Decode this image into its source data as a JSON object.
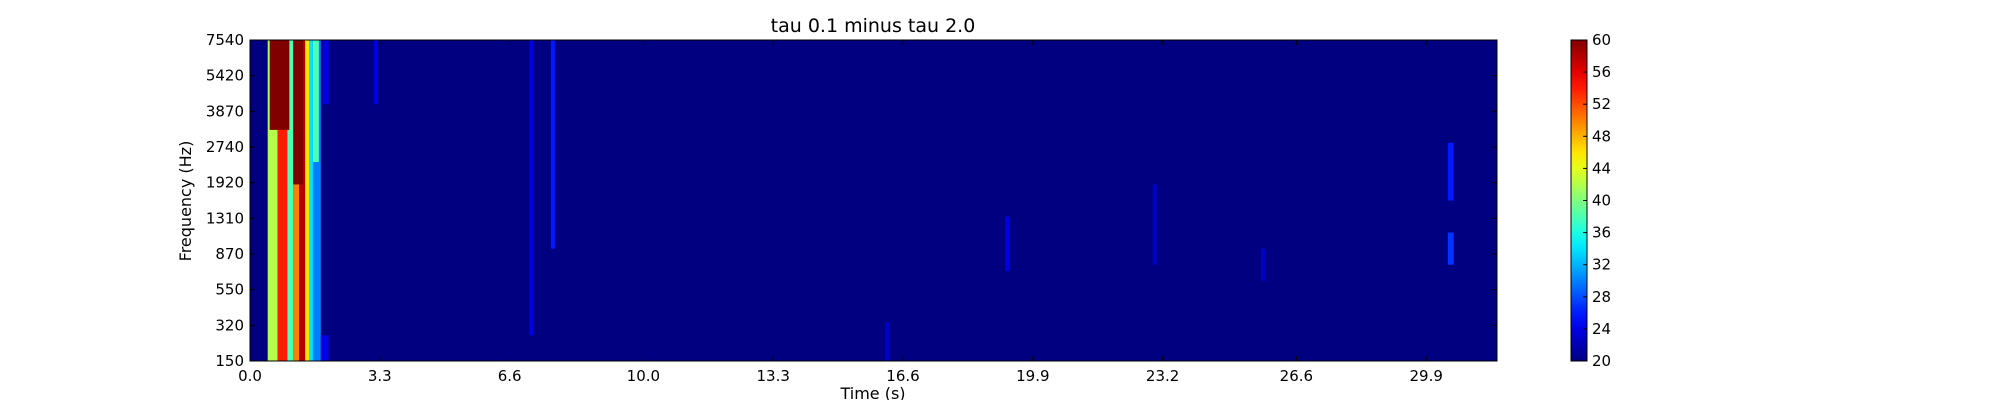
{
  "chart_data": {
    "type": "heatmap",
    "title": "tau 0.1 minus tau 2.0",
    "xlabel": "Time (s)",
    "ylabel": "Frequency (Hz)",
    "xlim": [
      0.0,
      31.7
    ],
    "x_ticks": [
      "0.0",
      "3.3",
      "6.6",
      "10.0",
      "13.3",
      "16.6",
      "19.9",
      "23.2",
      "26.6",
      "29.9"
    ],
    "x_tick_values": [
      0.0,
      3.3,
      6.6,
      10.0,
      13.3,
      16.6,
      19.9,
      23.2,
      26.6,
      29.9
    ],
    "y_ticks": [
      "150",
      "320",
      "550",
      "870",
      "1310",
      "1920",
      "2740",
      "3870",
      "5420",
      "7540"
    ],
    "colorbar": {
      "colormap": "jet",
      "range": [
        20,
        60
      ],
      "ticks": [
        "20",
        "24",
        "28",
        "32",
        "36",
        "40",
        "44",
        "48",
        "52",
        "56",
        "60"
      ]
    },
    "background_value": 20,
    "features": [
      {
        "t0": 0.45,
        "t1": 0.7,
        "f_from": 0.0,
        "f_to": 1.0,
        "value": 42
      },
      {
        "t0": 0.7,
        "t1": 0.95,
        "f_from": 0.0,
        "f_to": 1.0,
        "value": 54
      },
      {
        "t0": 0.95,
        "t1": 1.1,
        "f_from": 0.0,
        "f_to": 1.0,
        "value": 38
      },
      {
        "t0": 1.1,
        "t1": 1.25,
        "f_from": 0.0,
        "f_to": 1.0,
        "value": 50
      },
      {
        "t0": 1.25,
        "t1": 1.4,
        "f_from": 0.0,
        "f_to": 1.0,
        "value": 58
      },
      {
        "t0": 1.4,
        "t1": 1.5,
        "f_from": 0.0,
        "f_to": 1.0,
        "value": 46
      },
      {
        "t0": 1.5,
        "t1": 1.6,
        "f_from": 0.0,
        "f_to": 1.0,
        "value": 34
      },
      {
        "t0": 1.6,
        "t1": 1.8,
        "f_from": 0.0,
        "f_to": 1.0,
        "value": 30
      },
      {
        "t0": 0.5,
        "t1": 1.0,
        "f_from": 0.72,
        "f_to": 1.0,
        "value": 60
      },
      {
        "t0": 1.1,
        "t1": 1.35,
        "f_from": 0.55,
        "f_to": 1.0,
        "value": 60
      },
      {
        "t0": 1.6,
        "t1": 1.75,
        "f_from": 0.62,
        "f_to": 1.0,
        "value": 38
      },
      {
        "t0": 1.8,
        "t1": 2.0,
        "f_from": 0.0,
        "f_to": 0.08,
        "value": 24
      },
      {
        "t0": 1.85,
        "t1": 2.0,
        "f_from": 0.8,
        "f_to": 1.0,
        "value": 24
      },
      {
        "t0": 3.15,
        "t1": 3.25,
        "f_from": 0.8,
        "f_to": 1.0,
        "value": 24
      },
      {
        "t0": 7.1,
        "t1": 7.2,
        "f_from": 0.08,
        "f_to": 1.0,
        "value": 24
      },
      {
        "t0": 7.65,
        "t1": 7.75,
        "f_from": 0.35,
        "f_to": 1.0,
        "value": 26
      },
      {
        "t0": 16.15,
        "t1": 16.25,
        "f_from": 0.0,
        "f_to": 0.12,
        "value": 23
      },
      {
        "t0": 19.2,
        "t1": 19.3,
        "f_from": 0.28,
        "f_to": 0.45,
        "value": 24
      },
      {
        "t0": 22.95,
        "t1": 23.05,
        "f_from": 0.3,
        "f_to": 0.55,
        "value": 23
      },
      {
        "t0": 25.7,
        "t1": 25.8,
        "f_from": 0.25,
        "f_to": 0.35,
        "value": 23
      },
      {
        "t0": 30.45,
        "t1": 30.6,
        "f_from": 0.5,
        "f_to": 0.68,
        "value": 26
      },
      {
        "t0": 30.45,
        "t1": 30.6,
        "f_from": 0.3,
        "f_to": 0.4,
        "value": 27
      }
    ]
  }
}
